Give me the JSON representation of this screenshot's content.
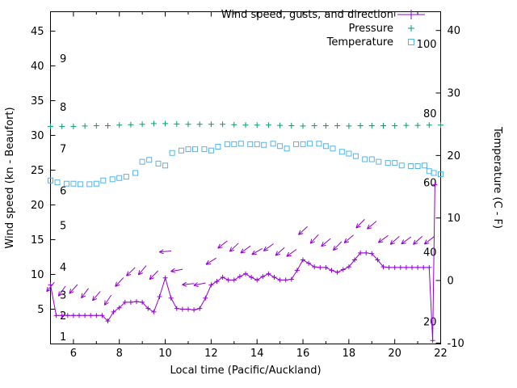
{
  "colors": {
    "background": "#ffffff",
    "border": "#000000",
    "wind": "#9400d3",
    "pressure": "#009e73",
    "temperature": "#56b4e9"
  },
  "chart_data": {
    "type": "line",
    "title": "",
    "xlabel": "Local time (Pacific/Auckland)",
    "ylabel_left": "Wind speed (kn - Beaufort)",
    "ylabel_right": "Temperature (C - F)",
    "x_range": [
      5,
      22
    ],
    "x_major_ticks": [
      6,
      8,
      10,
      12,
      14,
      16,
      18,
      20,
      22
    ],
    "x_minor_ticks": [
      5,
      7,
      9,
      11,
      13,
      15,
      17,
      19,
      21
    ],
    "y_left_range": [
      0,
      47.8
    ],
    "y_left_ticks": [
      5,
      10,
      15,
      20,
      25,
      30,
      35,
      40,
      45
    ],
    "y_right_range_c": [
      -10.15,
      43.0
    ],
    "y_right_ticks_c": [
      -10,
      0,
      10,
      20,
      30,
      40
    ],
    "beaufort_scale_labels": [
      {
        "beaufort": "1",
        "kn": 1
      },
      {
        "beaufort": "2",
        "kn": 4
      },
      {
        "beaufort": "3",
        "kn": 7
      },
      {
        "beaufort": "4",
        "kn": 11
      },
      {
        "beaufort": "5",
        "kn": 17
      },
      {
        "beaufort": "6",
        "kn": 22
      },
      {
        "beaufort": "7",
        "kn": 28
      },
      {
        "beaufort": "8",
        "kn": 34
      },
      {
        "beaufort": "9",
        "kn": 41
      }
    ],
    "fahrenheit_scale_labels": [
      "20",
      "40",
      "60",
      "80",
      "100"
    ],
    "series": [
      {
        "name": "Wind speed, gusts, and direction",
        "color": "#9400d3",
        "style": "line+plus+arrows",
        "unit": "kn",
        "points": [
          [
            5.0,
            8.5
          ],
          [
            5.25,
            4.1
          ],
          [
            5.5,
            4.1
          ],
          [
            5.75,
            4.1
          ],
          [
            6.0,
            4.1
          ],
          [
            6.25,
            4.1
          ],
          [
            6.5,
            4.1
          ],
          [
            6.75,
            4.1
          ],
          [
            7.0,
            4.1
          ],
          [
            7.25,
            4.1
          ],
          [
            7.5,
            3.3
          ],
          [
            7.75,
            4.6
          ],
          [
            8.0,
            5.2
          ],
          [
            8.25,
            6.0
          ],
          [
            8.5,
            6.0
          ],
          [
            8.75,
            6.1
          ],
          [
            9.0,
            6.0
          ],
          [
            9.25,
            5.1
          ],
          [
            9.5,
            4.6
          ],
          [
            9.75,
            6.8
          ],
          [
            10.0,
            9.5
          ],
          [
            10.25,
            6.6
          ],
          [
            10.5,
            5.1
          ],
          [
            10.75,
            5.0
          ],
          [
            11.0,
            5.0
          ],
          [
            11.25,
            4.9
          ],
          [
            11.5,
            5.1
          ],
          [
            11.75,
            6.6
          ],
          [
            12.0,
            8.5
          ],
          [
            12.25,
            9.0
          ],
          [
            12.5,
            9.6
          ],
          [
            12.75,
            9.2
          ],
          [
            13.0,
            9.2
          ],
          [
            13.25,
            9.7
          ],
          [
            13.5,
            10.1
          ],
          [
            13.75,
            9.6
          ],
          [
            14.0,
            9.2
          ],
          [
            14.25,
            9.7
          ],
          [
            14.5,
            10.1
          ],
          [
            14.75,
            9.6
          ],
          [
            15.0,
            9.2
          ],
          [
            15.25,
            9.2
          ],
          [
            15.5,
            9.3
          ],
          [
            15.75,
            10.6
          ],
          [
            16.0,
            12.1
          ],
          [
            16.25,
            11.6
          ],
          [
            16.5,
            11.1
          ],
          [
            16.75,
            11.0
          ],
          [
            17.0,
            11.0
          ],
          [
            17.25,
            10.6
          ],
          [
            17.5,
            10.3
          ],
          [
            17.75,
            10.7
          ],
          [
            18.0,
            11.1
          ],
          [
            18.25,
            12.1
          ],
          [
            18.5,
            13.1
          ],
          [
            18.75,
            13.1
          ],
          [
            19.0,
            13.0
          ],
          [
            19.25,
            12.1
          ],
          [
            19.5,
            11.1
          ],
          [
            19.75,
            11.0
          ],
          [
            20.0,
            11.0
          ],
          [
            20.25,
            11.0
          ],
          [
            20.5,
            11.0
          ],
          [
            20.75,
            11.0
          ],
          [
            21.0,
            11.0
          ],
          [
            21.25,
            11.0
          ],
          [
            21.5,
            11.0
          ],
          [
            21.65,
            0.5
          ],
          [
            21.75,
            22.9
          ]
        ],
        "direction_arrows": [
          [
            5.0,
            8.2,
            230
          ],
          [
            5.5,
            7.6,
            235
          ],
          [
            6.0,
            7.9,
            228
          ],
          [
            6.5,
            7.3,
            233
          ],
          [
            7.0,
            6.9,
            230
          ],
          [
            7.5,
            6.3,
            236
          ],
          [
            8.0,
            8.9,
            228
          ],
          [
            8.5,
            10.4,
            224
          ],
          [
            9.0,
            10.6,
            230
          ],
          [
            9.5,
            9.9,
            226
          ],
          [
            10.0,
            13.3,
            185
          ],
          [
            10.5,
            10.6,
            190
          ],
          [
            11.0,
            8.6,
            186
          ],
          [
            11.5,
            8.6,
            192
          ],
          [
            12.0,
            11.9,
            212
          ],
          [
            12.5,
            14.3,
            218
          ],
          [
            13.0,
            13.9,
            224
          ],
          [
            13.5,
            13.6,
            216
          ],
          [
            14.0,
            13.3,
            210
          ],
          [
            14.5,
            13.9,
            216
          ],
          [
            15.0,
            13.3,
            222
          ],
          [
            15.5,
            13.1,
            216
          ],
          [
            16.0,
            16.3,
            222
          ],
          [
            16.5,
            15.1,
            228
          ],
          [
            17.0,
            14.6,
            220
          ],
          [
            17.5,
            14.1,
            226
          ],
          [
            18.0,
            15.1,
            220
          ],
          [
            18.5,
            17.3,
            226
          ],
          [
            19.0,
            17.1,
            220
          ],
          [
            19.5,
            15.1,
            216
          ],
          [
            20.0,
            14.9,
            222
          ],
          [
            20.5,
            14.9,
            216
          ],
          [
            21.0,
            14.9,
            222
          ],
          [
            21.5,
            14.9,
            218
          ]
        ]
      },
      {
        "name": "Pressure",
        "color": "#009e73",
        "style": "plus",
        "unit": "left-axis units as plotted",
        "points": [
          [
            5.0,
            31.3
          ],
          [
            5.5,
            31.3
          ],
          [
            6.0,
            31.3
          ],
          [
            6.5,
            31.35
          ],
          [
            7.0,
            31.4
          ],
          [
            7.5,
            31.4
          ],
          [
            8.0,
            31.5
          ],
          [
            8.5,
            31.55
          ],
          [
            9.0,
            31.6
          ],
          [
            9.5,
            31.7
          ],
          [
            10.0,
            31.7
          ],
          [
            10.5,
            31.65
          ],
          [
            11.0,
            31.6
          ],
          [
            11.5,
            31.6
          ],
          [
            12.0,
            31.6
          ],
          [
            12.5,
            31.6
          ],
          [
            13.0,
            31.55
          ],
          [
            13.5,
            31.5
          ],
          [
            14.0,
            31.5
          ],
          [
            14.5,
            31.5
          ],
          [
            15.0,
            31.45
          ],
          [
            15.5,
            31.4
          ],
          [
            16.0,
            31.35
          ],
          [
            16.5,
            31.4
          ],
          [
            17.0,
            31.4
          ],
          [
            17.5,
            31.4
          ],
          [
            18.0,
            31.35
          ],
          [
            18.5,
            31.4
          ],
          [
            19.0,
            31.4
          ],
          [
            19.5,
            31.4
          ],
          [
            20.0,
            31.4
          ],
          [
            20.5,
            31.45
          ],
          [
            21.0,
            31.45
          ],
          [
            21.5,
            31.5
          ],
          [
            22.0,
            31.5
          ]
        ]
      },
      {
        "name": "Temperature",
        "color": "#56b4e9",
        "style": "open-square",
        "unit": "C",
        "points_c": [
          [
            5.0,
            16.0
          ],
          [
            5.3,
            15.7
          ],
          [
            5.7,
            15.5
          ],
          [
            6.0,
            15.5
          ],
          [
            6.3,
            15.4
          ],
          [
            6.7,
            15.4
          ],
          [
            7.0,
            15.5
          ],
          [
            7.3,
            16.0
          ],
          [
            7.7,
            16.2
          ],
          [
            8.0,
            16.4
          ],
          [
            8.3,
            16.6
          ],
          [
            8.7,
            17.2
          ],
          [
            9.0,
            19.0
          ],
          [
            9.3,
            19.3
          ],
          [
            9.7,
            18.7
          ],
          [
            10.0,
            18.4
          ],
          [
            10.3,
            20.4
          ],
          [
            10.7,
            20.8
          ],
          [
            11.0,
            21.0
          ],
          [
            11.3,
            21.0
          ],
          [
            11.7,
            21.0
          ],
          [
            12.0,
            20.8
          ],
          [
            12.3,
            21.4
          ],
          [
            12.7,
            21.8
          ],
          [
            13.0,
            21.8
          ],
          [
            13.3,
            21.9
          ],
          [
            13.7,
            21.8
          ],
          [
            14.0,
            21.8
          ],
          [
            14.3,
            21.7
          ],
          [
            14.7,
            21.9
          ],
          [
            15.0,
            21.5
          ],
          [
            15.3,
            21.1
          ],
          [
            15.7,
            21.8
          ],
          [
            16.0,
            21.8
          ],
          [
            16.3,
            21.9
          ],
          [
            16.7,
            21.9
          ],
          [
            17.0,
            21.5
          ],
          [
            17.3,
            21.1
          ],
          [
            17.7,
            20.6
          ],
          [
            18.0,
            20.3
          ],
          [
            18.3,
            19.9
          ],
          [
            18.7,
            19.4
          ],
          [
            19.0,
            19.4
          ],
          [
            19.3,
            19.0
          ],
          [
            19.7,
            18.8
          ],
          [
            20.0,
            18.8
          ],
          [
            20.3,
            18.4
          ],
          [
            20.7,
            18.3
          ],
          [
            21.0,
            18.3
          ],
          [
            21.3,
            18.4
          ],
          [
            21.5,
            17.5
          ],
          [
            21.7,
            17.2
          ],
          [
            22.0,
            17.0
          ]
        ]
      }
    ]
  }
}
